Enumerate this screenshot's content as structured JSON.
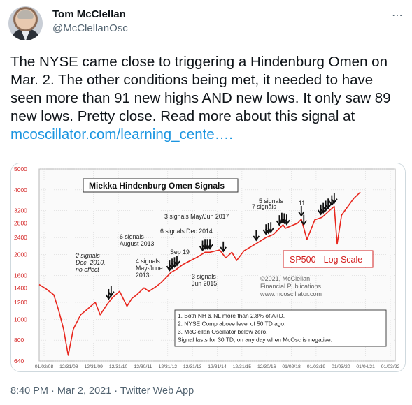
{
  "author": {
    "name": "Tom McClellan",
    "handle": "@McClellanOsc"
  },
  "tweet": {
    "text": "The NYSE came close to triggering a Hindenburg Omen on Mar. 2. The other conditions being met, it needed to have seen more than 91 new highs AND new lows. It only saw 89 new lows. Pretty close. Read more about this signal at ",
    "link_text": "mcoscillator.com/learning_cente…."
  },
  "meta": {
    "time": "8:40 PM",
    "separator_1": " · ",
    "date": "Mar 2, 2021",
    "separator_2": " · ",
    "source": "Twitter Web App"
  },
  "chart_data": {
    "type": "line",
    "title": "Miekka Hindenburg Omen Signals",
    "scale_label": "SP500 - Log Scale",
    "y_scale": "log",
    "ylim": [
      640,
      5000
    ],
    "y_ticks": [
      "5000",
      "4000",
      "3200",
      "2800",
      "2400",
      "2000",
      "1600",
      "1400",
      "1200",
      "1000",
      "800",
      "640"
    ],
    "x_ticks": [
      "01/02/08",
      "12/31/08",
      "12/31/09",
      "12/31/10",
      "12/30/11",
      "12/31/12",
      "12/31/13",
      "12/31/14",
      "12/31/15",
      "12/30/16",
      "01/02/18",
      "01/03/19",
      "01/03/20",
      "01/04/21",
      "01/03/22"
    ],
    "copyright": [
      "©2021, McClellan",
      "Financial Publications",
      "www.mcoscillator.com"
    ],
    "conditions": [
      "1. Both NH & NL more than 2.8% of A+D.",
      "2. NYSE Comp above level of 50 TD ago.",
      "3. McClellan Oscillator below zero.",
      "Signal lasts for 30 TD, on any day when McOsc is negative."
    ],
    "annotations": [
      "2 signals\nDec. 2010,\nno effect",
      "4 signals\nMay-June\n2013",
      "6 signals\nAugust 2013",
      "Sep 19",
      "6 signals Dec 2014",
      "3 signals May/Jun 2017",
      "3 signals\nJun 2015",
      "7 signals",
      "5 signals",
      "11"
    ],
    "x_dates": [
      2008.0,
      2008.3,
      2008.6,
      2008.8,
      2009.0,
      2009.19,
      2009.4,
      2009.7,
      2010.0,
      2010.3,
      2010.5,
      2010.8,
      2011.0,
      2011.3,
      2011.6,
      2011.8,
      2012.0,
      2012.3,
      2012.5,
      2012.8,
      2013.0,
      2013.4,
      2013.6,
      2013.9,
      2014.1,
      2014.5,
      2014.8,
      2015.0,
      2015.4,
      2015.65,
      2015.9,
      2016.1,
      2016.4,
      2016.9,
      2017.3,
      2017.6,
      2018.0,
      2018.1,
      2018.6,
      2018.75,
      2018.98,
      2019.3,
      2019.6,
      2019.9,
      2020.1,
      2020.22,
      2020.4,
      2020.7,
      2020.9,
      2021.17
    ],
    "values": [
      1450,
      1380,
      1300,
      1100,
      900,
      680,
      900,
      1050,
      1120,
      1200,
      1050,
      1180,
      1260,
      1350,
      1150,
      1250,
      1300,
      1400,
      1350,
      1420,
      1480,
      1650,
      1700,
      1800,
      1850,
      1950,
      2050,
      2050,
      2100,
      1930,
      2050,
      1880,
      2080,
      2250,
      2400,
      2480,
      2750,
      2650,
      2800,
      2920,
      2350,
      2900,
      2980,
      3200,
      3350,
      2240,
      3050,
      3400,
      3650,
      3900
    ],
    "signal_dates": [
      2010.85,
      2010.95,
      2013.35,
      2013.45,
      2013.55,
      2013.65,
      2014.7,
      2014.8,
      2014.9,
      2015.0,
      2015.55,
      2016.9,
      2017.3,
      2017.4,
      2017.5,
      2017.85,
      2017.95,
      2018.05,
      2018.15,
      2018.75,
      2018.85,
      2019.55,
      2019.65,
      2019.75,
      2019.85,
      2020.0,
      2020.1
    ]
  }
}
